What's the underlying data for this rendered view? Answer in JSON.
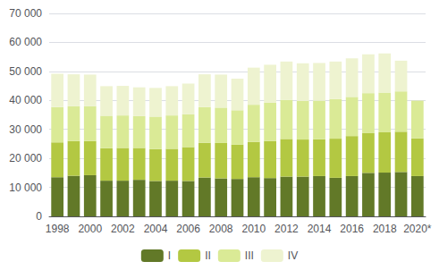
{
  "chart_data": {
    "type": "bar",
    "stacked": true,
    "grid": true,
    "legend": "bottom",
    "categories": [
      "1998",
      null,
      "2000",
      null,
      "2002",
      null,
      "2004",
      null,
      "2006",
      null,
      "2008",
      null,
      "2010",
      null,
      "2012",
      null,
      "2014",
      null,
      "2016",
      null,
      "2018",
      null,
      "2020*"
    ],
    "series": [
      {
        "name": "I",
        "color": "#627928",
        "values": [
          13500,
          14000,
          14200,
          12300,
          12300,
          12600,
          12200,
          12300,
          12200,
          13400,
          13100,
          12900,
          13500,
          13200,
          13700,
          13700,
          13900,
          13300,
          13900,
          15000,
          15100,
          15300,
          13900
        ]
      },
      {
        "name": "II",
        "color": "#b3c842",
        "values": [
          12000,
          12000,
          11800,
          11200,
          11300,
          11000,
          11000,
          11000,
          11700,
          12000,
          12200,
          11800,
          12200,
          12800,
          13000,
          12800,
          12700,
          13500,
          13800,
          13700,
          13900,
          13900,
          13000
        ]
      },
      {
        "name": "III",
        "color": "#daea96",
        "values": [
          12200,
          12000,
          12000,
          11200,
          11200,
          11000,
          11200,
          11500,
          11300,
          12300,
          12200,
          11900,
          12800,
          13200,
          13500,
          13300,
          13300,
          13700,
          13500,
          13800,
          13700,
          13900,
          13000
        ]
      },
      {
        "name": "IV",
        "color": "#eef3d0",
        "values": [
          11500,
          11000,
          10900,
          10200,
          10200,
          9900,
          9900,
          10100,
          10600,
          11300,
          11400,
          10900,
          12800,
          13100,
          13200,
          13000,
          13000,
          12900,
          13300,
          13400,
          13500,
          10600,
          0
        ]
      }
    ],
    "ylim": [
      0,
      70000
    ],
    "yticks": [
      0,
      {
        "value": 10000,
        "label": "10 000"
      },
      {
        "value": 20000,
        "label": "20 000"
      },
      {
        "value": 30000,
        "label": "30 000"
      },
      {
        "value": 40000,
        "label": "40 000"
      },
      {
        "value": 50000,
        "label": "50 000"
      },
      {
        "value": 60000,
        "label": "60 000"
      },
      {
        "value": 70000,
        "label": "70 000"
      }
    ]
  }
}
